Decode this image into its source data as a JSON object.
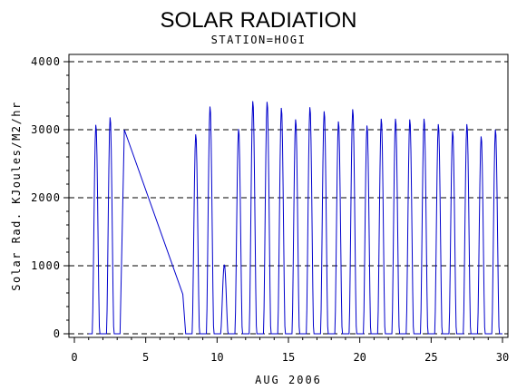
{
  "chart_data": {
    "type": "line",
    "title": "SOLAR RADIATION",
    "subtitle": "STATION=HOGI",
    "xlabel": "AUG 2006",
    "ylabel": "Solar Rad. KJoules/M2/hr",
    "xlim": [
      0,
      30.2
    ],
    "ylim": [
      0,
      4000
    ],
    "x_ticks": [
      0,
      5,
      10,
      15,
      20,
      25,
      30
    ],
    "y_ticks": [
      0,
      1000,
      2000,
      3000,
      4000
    ],
    "grid": "horizontal-dashed",
    "line_color": "#0000cc",
    "daily_peaks": [
      {
        "day": 1,
        "peak": 3080
      },
      {
        "day": 2,
        "peak": 3190
      },
      {
        "day": 8,
        "peak": 2940
      },
      {
        "day": 9,
        "peak": 3350
      },
      {
        "day": 10,
        "peak": 1020
      },
      {
        "day": 11,
        "peak": 3020
      },
      {
        "day": 12,
        "peak": 3430
      },
      {
        "day": 13,
        "peak": 3420
      },
      {
        "day": 14,
        "peak": 3330
      },
      {
        "day": 15,
        "peak": 3160
      },
      {
        "day": 16,
        "peak": 3340
      },
      {
        "day": 17,
        "peak": 3280
      },
      {
        "day": 18,
        "peak": 3130
      },
      {
        "day": 19,
        "peak": 3310
      },
      {
        "day": 20,
        "peak": 3070
      },
      {
        "day": 21,
        "peak": 3170
      },
      {
        "day": 22,
        "peak": 3170
      },
      {
        "day": 23,
        "peak": 3160
      },
      {
        "day": 24,
        "peak": 3170
      },
      {
        "day": 25,
        "peak": 3090
      },
      {
        "day": 26,
        "peak": 2990
      },
      {
        "day": 27,
        "peak": 3090
      },
      {
        "day": 28,
        "peak": 2910
      },
      {
        "day": 29,
        "peak": 3010
      }
    ],
    "gap_segment": {
      "from": [
        3.5,
        3000
      ],
      "to": [
        7.6,
        580
      ]
    }
  }
}
